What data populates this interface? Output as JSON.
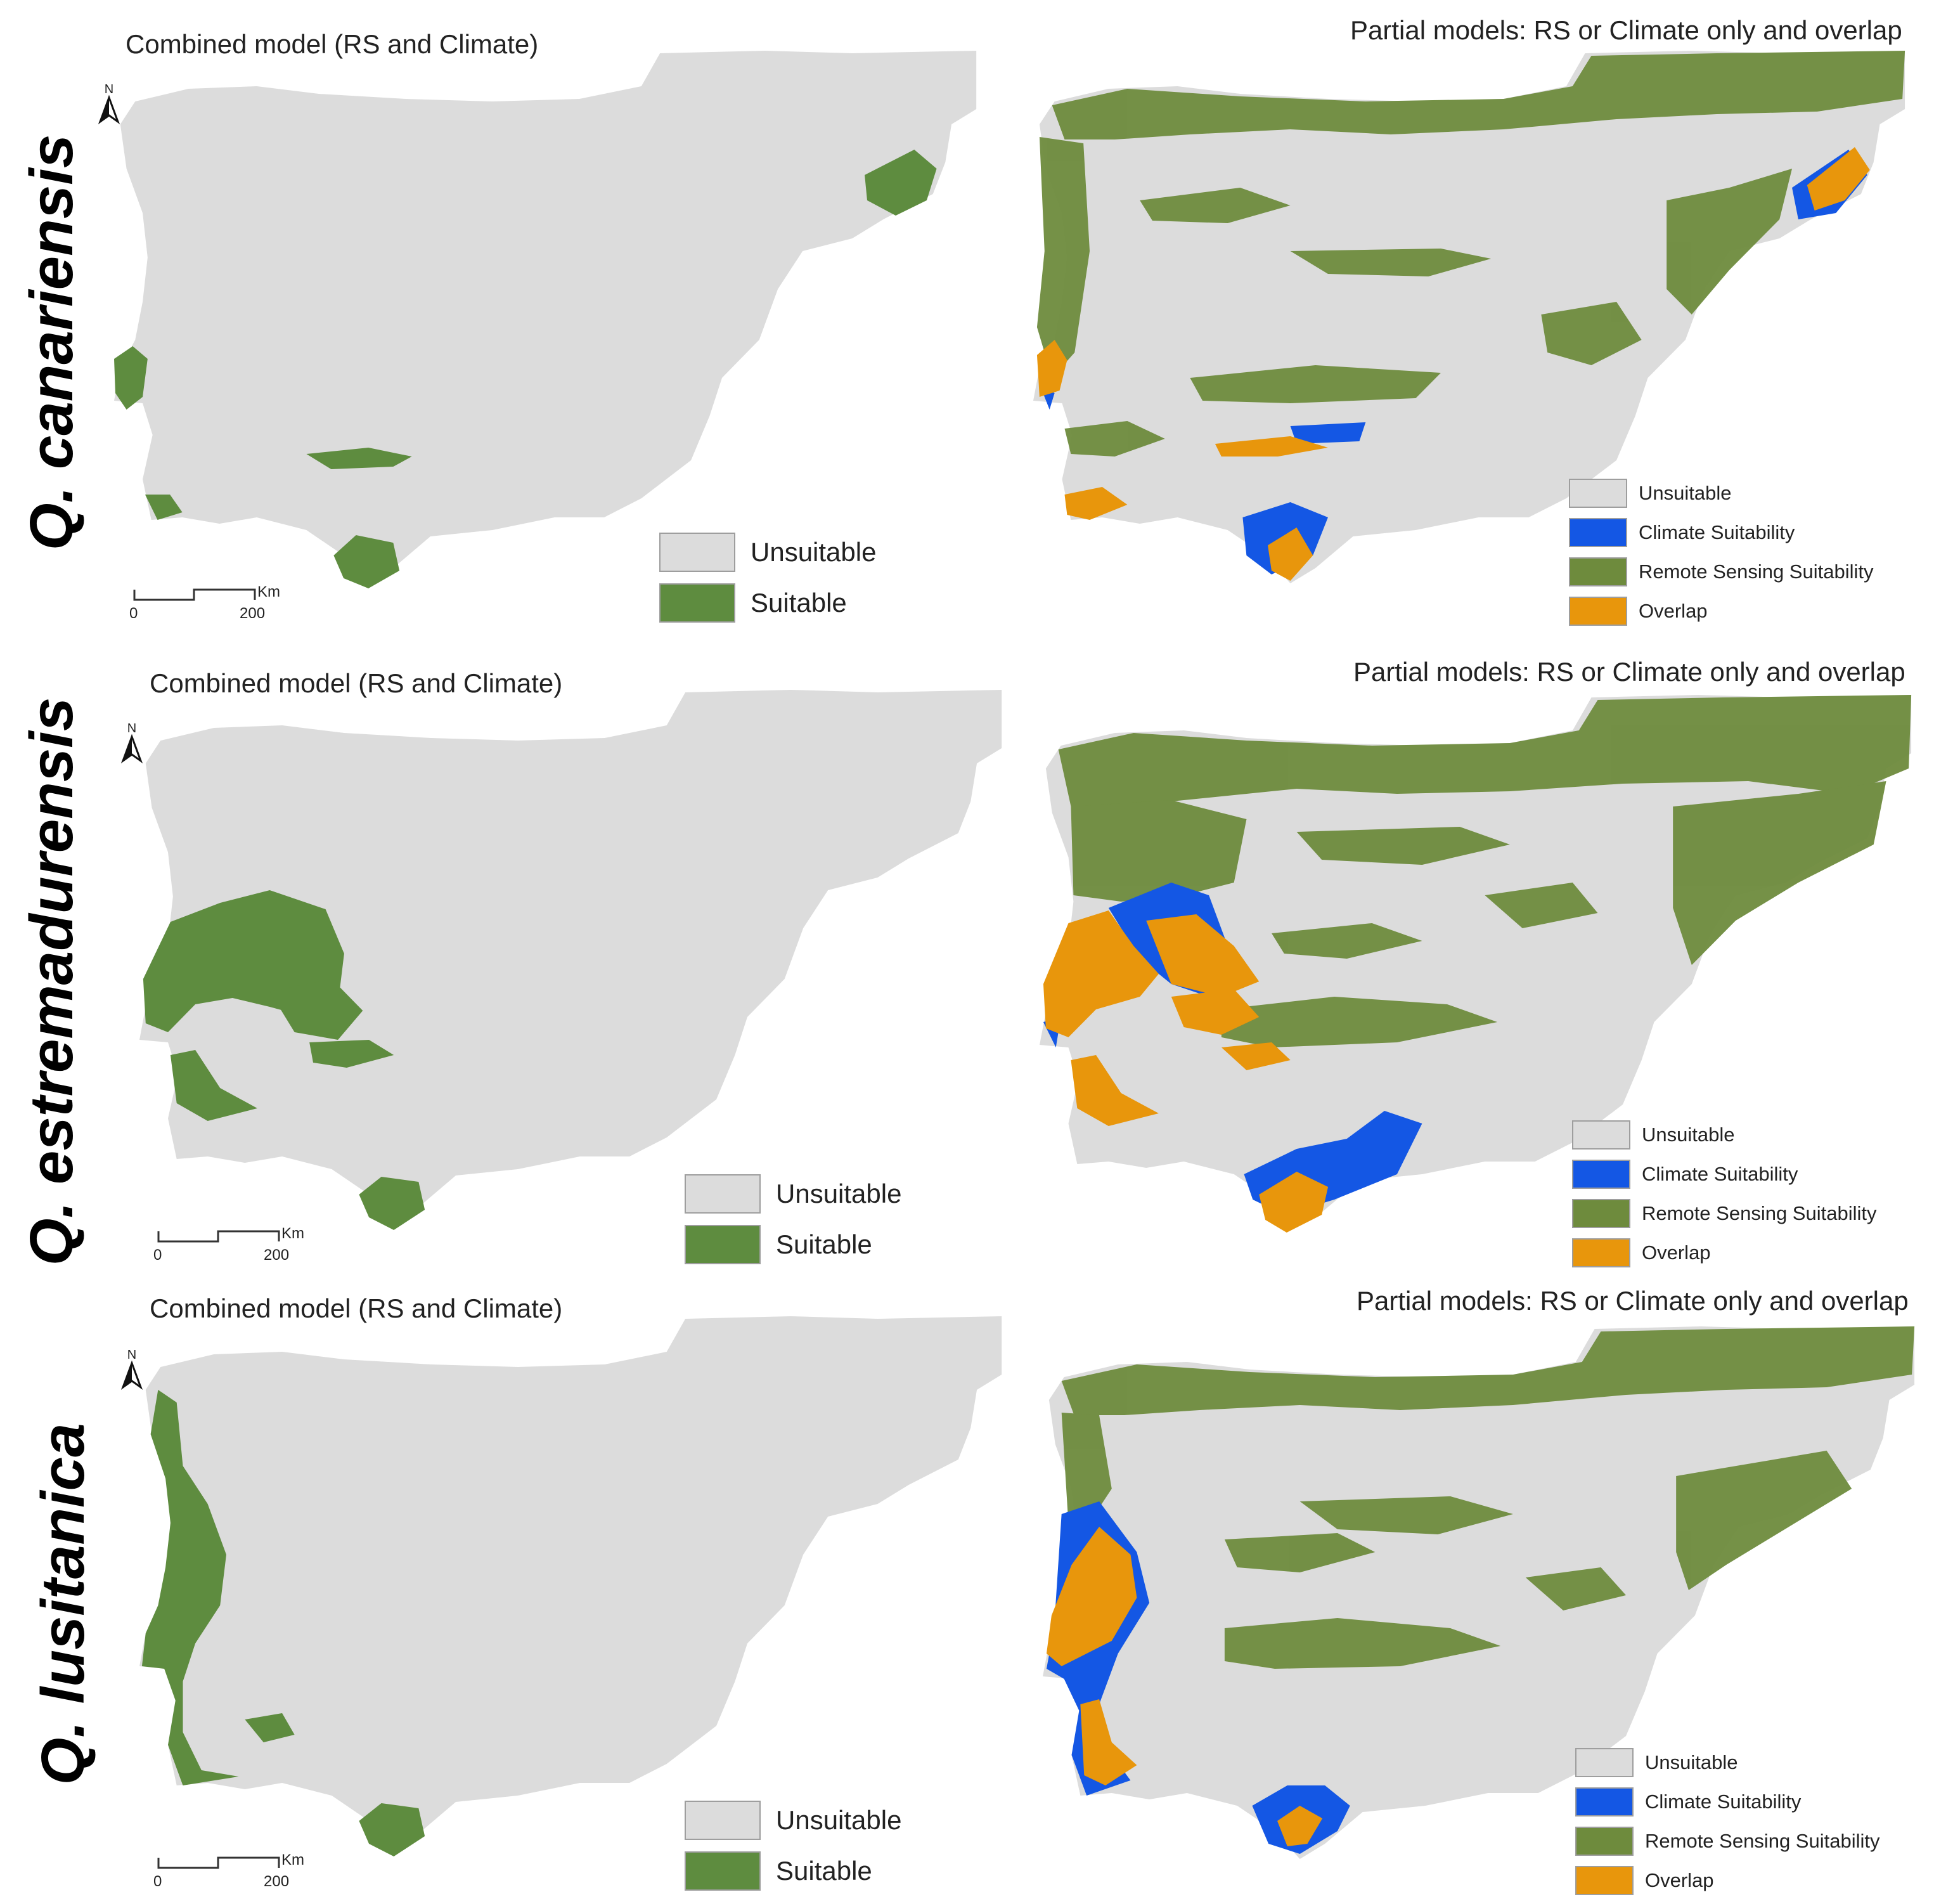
{
  "figure": {
    "rows": [
      {
        "species": "Q. canariensis",
        "combined_title": "Combined model (RS and Climate)",
        "partial_title": "Partial models: RS or Climate only and overlap"
      },
      {
        "species": "Q. estremadurensis",
        "combined_title": "Combined model (RS and Climate)",
        "partial_title": "Partial models: RS or Climate only and overlap"
      },
      {
        "species": "Q. lusitanica",
        "combined_title": "Combined model (RS and Climate)",
        "partial_title": "Partial models: RS or Climate only and overlap"
      }
    ],
    "legend_combined": [
      {
        "label": "Unsuitable",
        "color": "#dcdcdc"
      },
      {
        "label": "Suitable",
        "color": "#5e8c3f"
      }
    ],
    "legend_partial": [
      {
        "label": "Unsuitable",
        "color": "#dcdcdc"
      },
      {
        "label": "Climate Suitability",
        "color": "#1457e4"
      },
      {
        "label": "Remote Sensing Suitability",
        "color": "#6e8b3d"
      },
      {
        "label": "Overlap",
        "color": "#e8960c"
      }
    ],
    "north_label": "N",
    "scale_bar": {
      "unit": "Km",
      "start": "0",
      "end": "200"
    }
  }
}
